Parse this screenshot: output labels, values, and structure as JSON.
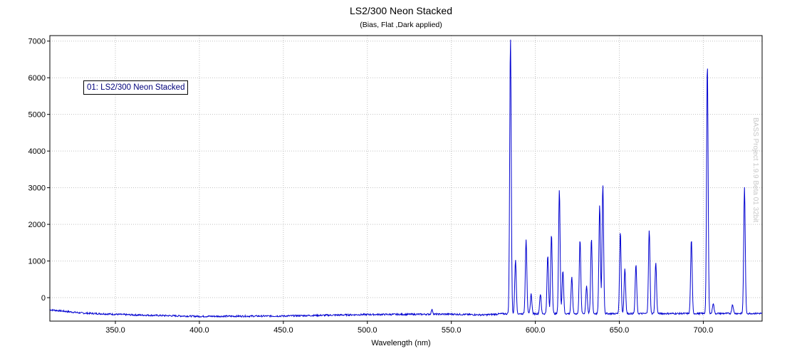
{
  "chart_data": {
    "type": "line",
    "title": "LS2/300 Neon Stacked",
    "subtitle": "(Bias, Flat ,Dark applied)",
    "xlabel": "Wavelength (nm)",
    "ylabel": "",
    "xlim": [
      311,
      735
    ],
    "ylim": [
      -640,
      7150
    ],
    "xticks": [
      350,
      400,
      450,
      500,
      550,
      600,
      650,
      700
    ],
    "xtick_labels": [
      "350.0",
      "400.0",
      "450.0",
      "500.0",
      "550.0",
      "600.0",
      "650.0",
      "700.0"
    ],
    "yticks": [
      0,
      1000,
      2000,
      3000,
      4000,
      5000,
      6000,
      7000
    ],
    "ytick_labels": [
      "0",
      "1000",
      "2000",
      "3000",
      "4000",
      "5000",
      "6000",
      "7000"
    ],
    "grid": true,
    "legend": "top-left",
    "watermark": "BASS Project 1.9.9 Beta 01 32bit",
    "series": [
      {
        "name": "01: LS2/300 Neon Stacked",
        "color": "#0000d0",
        "baseline": [
          [
            311,
            -330
          ],
          [
            330,
            -420
          ],
          [
            360,
            -470
          ],
          [
            400,
            -510
          ],
          [
            450,
            -500
          ],
          [
            500,
            -460
          ],
          [
            550,
            -450
          ],
          [
            570,
            -470
          ],
          [
            580,
            -440
          ],
          [
            735,
            -430
          ]
        ],
        "lines": [
          {
            "x": 538.5,
            "y": -330
          },
          {
            "x": 585.2,
            "y": 7100
          },
          {
            "x": 588.2,
            "y": 1050
          },
          {
            "x": 594.5,
            "y": 1600
          },
          {
            "x": 597.5,
            "y": 100
          },
          {
            "x": 603.0,
            "y": 100
          },
          {
            "x": 607.4,
            "y": 1150
          },
          {
            "x": 609.6,
            "y": 1750
          },
          {
            "x": 614.3,
            "y": 2950
          },
          {
            "x": 616.4,
            "y": 750
          },
          {
            "x": 621.7,
            "y": 550
          },
          {
            "x": 626.6,
            "y": 1600
          },
          {
            "x": 630.5,
            "y": 330
          },
          {
            "x": 633.4,
            "y": 1620
          },
          {
            "x": 638.3,
            "y": 2520
          },
          {
            "x": 640.2,
            "y": 3100
          },
          {
            "x": 650.6,
            "y": 1800
          },
          {
            "x": 653.3,
            "y": 800
          },
          {
            "x": 659.9,
            "y": 900
          },
          {
            "x": 667.8,
            "y": 1850
          },
          {
            "x": 671.7,
            "y": 960
          },
          {
            "x": 692.9,
            "y": 1600
          },
          {
            "x": 702.4,
            "y": 6400
          },
          {
            "x": 705.9,
            "y": -150
          },
          {
            "x": 717.4,
            "y": -180
          },
          {
            "x": 724.5,
            "y": 3000
          }
        ]
      }
    ]
  }
}
